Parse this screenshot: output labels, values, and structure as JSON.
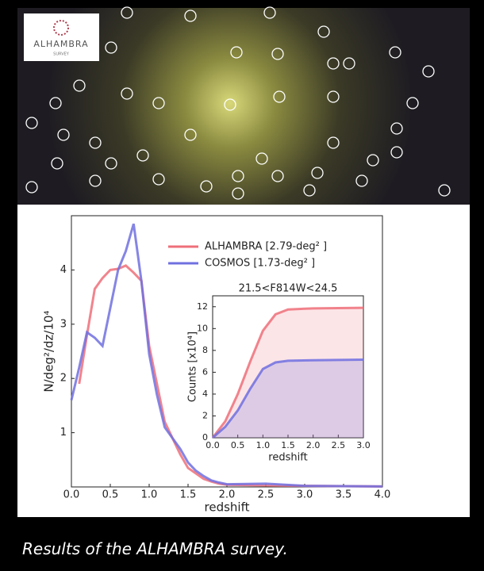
{
  "header": {
    "logo": "ALHAMBRA",
    "logo_sub": "SURVEY"
  },
  "chart_data": [
    {
      "type": "line",
      "xlabel": "redshift",
      "ylabel": "N/deg²/dz/10⁴",
      "x": [
        0.0,
        0.1,
        0.2,
        0.3,
        0.4,
        0.5,
        0.6,
        0.7,
        0.8,
        0.9,
        1.0,
        1.1,
        1.2,
        1.3,
        1.4,
        1.5,
        1.6,
        1.7,
        1.8,
        1.9,
        2.0,
        2.5,
        3.0,
        4.0
      ],
      "series": [
        {
          "name": "ALHAMBRA [2.79-deg² ]",
          "color": "#ef6f79",
          "values": [
            null,
            1.9,
            2.8,
            3.65,
            3.85,
            4.0,
            4.02,
            4.08,
            3.95,
            3.8,
            2.6,
            1.9,
            1.2,
            0.9,
            0.6,
            0.35,
            0.25,
            0.15,
            0.1,
            0.06,
            0.04,
            0.03,
            0.02,
            0.01
          ]
        },
        {
          "name": "COSMOS [1.73-deg² ]",
          "color": "#7070e0",
          "values": [
            1.6,
            2.2,
            2.85,
            2.75,
            2.6,
            3.3,
            4.0,
            4.35,
            4.85,
            3.8,
            2.45,
            1.7,
            1.1,
            0.9,
            0.7,
            0.45,
            0.3,
            0.2,
            0.12,
            0.08,
            0.05,
            0.06,
            0.02,
            0.01
          ]
        }
      ],
      "xlim": [
        0,
        4
      ],
      "ylim": [
        0,
        5
      ],
      "xticks": [
        {
          "value": 0,
          "label": "0.0"
        },
        {
          "value": 0.5,
          "label": "0.5"
        },
        {
          "value": 1,
          "label": "1.0"
        },
        {
          "value": 1.5,
          "label": "1.5"
        },
        {
          "value": 2,
          "label": "2.0"
        },
        {
          "value": 2.5,
          "label": "2.5"
        },
        {
          "value": 3,
          "label": "3.0"
        },
        {
          "value": 3.5,
          "label": "3.5"
        },
        {
          "value": 4,
          "label": "4.0"
        }
      ],
      "yticks": [
        1,
        2,
        3,
        4
      ],
      "legend": "upper right",
      "fill": false
    },
    {
      "type": "line",
      "title": "21.5<F814W<24.5",
      "xlabel": "redshift",
      "ylabel": "Counts [x10⁴]",
      "x": [
        0.0,
        0.25,
        0.5,
        0.75,
        1.0,
        1.25,
        1.5,
        2.0,
        3.0
      ],
      "series": [
        {
          "color": "#ef6f79",
          "values": [
            0,
            1.5,
            4,
            7,
            9.8,
            11.3,
            11.75,
            11.85,
            11.9
          ]
        },
        {
          "color": "#7070e0",
          "values": [
            0,
            1,
            2.5,
            4.5,
            6.3,
            6.9,
            7.05,
            7.1,
            7.15
          ]
        }
      ],
      "xlim": [
        0,
        3
      ],
      "ylim": [
        0,
        13
      ],
      "xticks": [
        {
          "value": 0,
          "label": "0.0"
        },
        {
          "value": 0.5,
          "label": "0.5"
        },
        {
          "value": 1,
          "label": "1.0"
        },
        {
          "value": 1.5,
          "label": "1.5"
        },
        {
          "value": 2,
          "label": "2.0"
        },
        {
          "value": 2.5,
          "label": "2.5"
        },
        {
          "value": 3,
          "label": "3.0"
        }
      ],
      "yticks": [
        0,
        2,
        4,
        6,
        8,
        10,
        12
      ],
      "fill": true
    }
  ],
  "caption": "Results of the ALHAMBRA survey."
}
